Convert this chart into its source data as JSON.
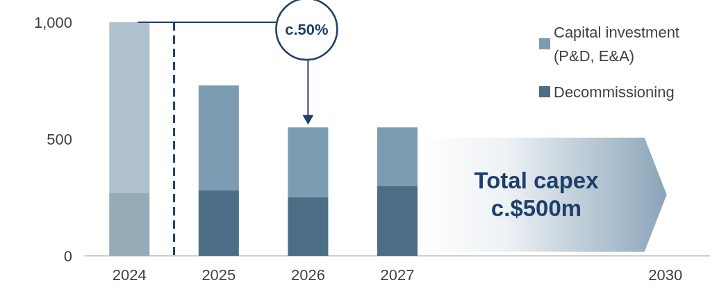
{
  "chart_data": {
    "type": "bar",
    "stacked": true,
    "categories": [
      "2024",
      "2025",
      "2026",
      "2027",
      null,
      null,
      "2030"
    ],
    "series": [
      {
        "name": "Decommissioning",
        "color": "#4b6d86",
        "colors": [
          "#97aab7",
          "#4b6d86",
          "#4b6d86",
          "#4b6d86",
          null,
          null,
          null
        ],
        "values": [
          270,
          280,
          250,
          300,
          null,
          null,
          null
        ]
      },
      {
        "name": "Capital investment (P&D, E&A)",
        "color": "#7b9cb1",
        "colors": [
          "#afc1cd",
          "#7b9cb1",
          "#7b9cb1",
          "#7b9cb1",
          null,
          null,
          null
        ],
        "values": [
          730,
          450,
          300,
          250,
          null,
          null,
          null
        ]
      }
    ],
    "ylim": [
      0,
      1000
    ],
    "yticks": [
      0,
      500,
      {
        "value": 1000,
        "label": "1,000"
      }
    ],
    "grid": false,
    "legend": "top right",
    "annotations": [
      "c.50%",
      "Total capex c.$500m"
    ]
  }
}
